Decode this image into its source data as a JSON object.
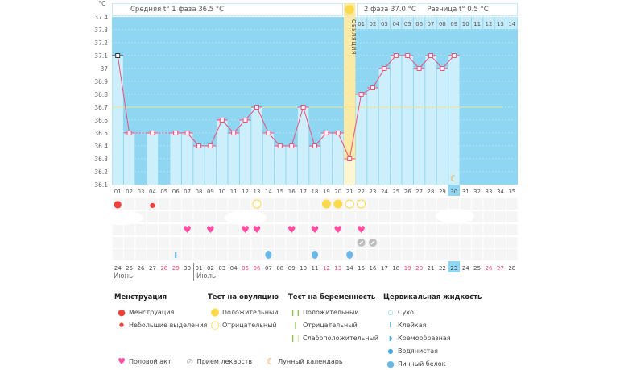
{
  "header": {
    "phase1_label": "Средняя t° 1 фаза 36.5 °C",
    "phase2_label": "2 фаза 37.0 °C",
    "diff_label": "Разница t° 0.5 °C",
    "ovulation_label": "ОВУЛЯЦИЯ",
    "unit": "°C"
  },
  "colors": {
    "bg": "#8fd6f2",
    "bar": "#cdeefb",
    "line": "#f0507a",
    "avg": "#f3e58a",
    "ovulation": "#fbe9a6"
  },
  "chart_data": {
    "type": "line",
    "ylabel": "°C",
    "ylim": [
      36.1,
      37.4
    ],
    "yticks": [
      "36.1",
      "36.2",
      "36.3",
      "36.4",
      "36.5",
      "36.6",
      "36.7",
      "36.8",
      "36.9",
      "37",
      "37.1",
      "37.2",
      "37.3",
      "37.4"
    ],
    "cycle_days": [
      "01",
      "02",
      "03",
      "04",
      "05",
      "06",
      "07",
      "08",
      "09",
      "10",
      "11",
      "12",
      "13",
      "14",
      "15",
      "16",
      "17",
      "18",
      "19",
      "20",
      "21",
      "22",
      "23",
      "24",
      "25",
      "26",
      "27",
      "28",
      "29",
      "30",
      "31",
      "32",
      "33",
      "34",
      "35"
    ],
    "phase2_days": [
      "01",
      "02",
      "03",
      "04",
      "05",
      "06",
      "07",
      "08",
      "09",
      "10",
      "11",
      "12",
      "13",
      "14"
    ],
    "temperatures": [
      37.1,
      36.5,
      null,
      36.5,
      null,
      36.5,
      36.5,
      36.4,
      36.4,
      36.6,
      36.5,
      36.6,
      36.7,
      36.5,
      36.4,
      36.4,
      36.7,
      36.4,
      36.5,
      36.5,
      36.3,
      36.8,
      36.85,
      37.0,
      37.1,
      37.1,
      37.0,
      37.1,
      37.0,
      37.1
    ],
    "cover_line": 36.7,
    "ovulation_day": 21,
    "current_day": 30
  },
  "markers": {
    "menstruation": [
      {
        "day": 1,
        "size": "big"
      },
      {
        "day": 4,
        "size": "small"
      }
    ],
    "ovulation_test": [
      {
        "day": 13,
        "result": "neg"
      },
      {
        "day": 19,
        "result": "pos"
      },
      {
        "day": 20,
        "result": "pos"
      },
      {
        "day": 21,
        "result": "neg"
      },
      {
        "day": 22,
        "result": "neg"
      }
    ],
    "intercourse": [
      7,
      9,
      12,
      13,
      16,
      18,
      20,
      22
    ],
    "medication": [
      22,
      23
    ],
    "cervical": [
      {
        "day": 6,
        "type": "sticky"
      },
      {
        "day": 14,
        "type": "egg"
      },
      {
        "day": 18,
        "type": "egg"
      },
      {
        "day": 21,
        "type": "egg"
      }
    ],
    "moon": [
      30
    ]
  },
  "calendar": {
    "dates": [
      "24",
      "25",
      "26",
      "27",
      "28",
      "29",
      "30",
      "01",
      "02",
      "03",
      "04",
      "05",
      "06",
      "07",
      "08",
      "09",
      "10",
      "11",
      "12",
      "13",
      "14",
      "15",
      "16",
      "17",
      "18",
      "19",
      "20",
      "21",
      "22",
      "23",
      "24",
      "25",
      "26",
      "27",
      "28"
    ],
    "weekend_idx": [
      4,
      5,
      11,
      12,
      18,
      19,
      25,
      26,
      32,
      33
    ],
    "month1": "Июнь",
    "month2": "Июль"
  },
  "legend": {
    "menstruation": {
      "title": "Менструация",
      "items": [
        "Менструация",
        "Небольшие выделения"
      ]
    },
    "ovulation": {
      "title": "Тест на овуляцию",
      "items": [
        "Положительный",
        "Отрицательный"
      ]
    },
    "pregnancy": {
      "title": "Тест на беременность",
      "items": [
        "Положительный",
        "Отрицательный",
        "Слабоположительный"
      ]
    },
    "cervical": {
      "title": "Цервикальная жидкость",
      "items": [
        "Сухо",
        "Клейкая",
        "Кремообразная",
        "Водянистая",
        "Яичный белок"
      ]
    },
    "other": [
      "Половой акт",
      "Прием лекарств",
      "Лунный календарь"
    ]
  }
}
